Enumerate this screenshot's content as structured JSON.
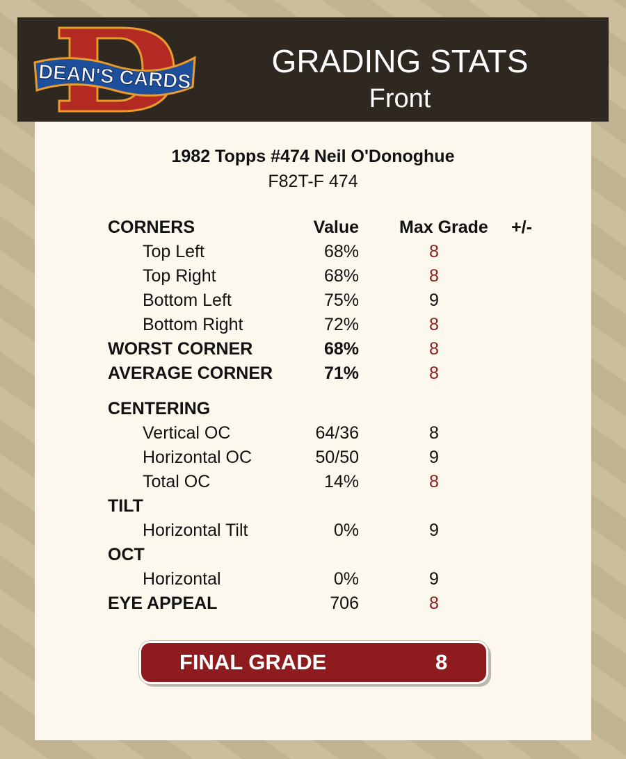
{
  "header": {
    "logo_text": "DEAN'S CARDS",
    "title": "GRADING STATS",
    "subtitle": "Front"
  },
  "card": {
    "title": "1982 Topps #474 Neil O'Donoghue",
    "code": "F82T-F 474"
  },
  "colors": {
    "highlight": "#8e1b1d",
    "header_bg": "#2e2820",
    "panel_bg": "#fcf8ee"
  },
  "table": {
    "columns": {
      "value": "Value",
      "max_grade": "Max Grade",
      "plus_minus": "+/-"
    },
    "rows": [
      {
        "label": "CORNERS",
        "type": "header"
      },
      {
        "label": "Top Left",
        "value": "68%",
        "max_grade": "8",
        "highlight": true,
        "type": "sub"
      },
      {
        "label": "Top Right",
        "value": "68%",
        "max_grade": "8",
        "highlight": true,
        "type": "sub"
      },
      {
        "label": "Bottom Left",
        "value": "75%",
        "max_grade": "9",
        "highlight": false,
        "type": "sub"
      },
      {
        "label": "Bottom Right",
        "value": "72%",
        "max_grade": "8",
        "highlight": true,
        "type": "sub"
      },
      {
        "label": "WORST CORNER",
        "value": "68%",
        "max_grade": "8",
        "highlight": true,
        "type": "bold"
      },
      {
        "label": "AVERAGE CORNER",
        "value": "71%",
        "max_grade": "8",
        "highlight": true,
        "type": "bold"
      },
      {
        "label": "CENTERING",
        "type": "section"
      },
      {
        "label": "Vertical OC",
        "value": "64/36",
        "max_grade": "8",
        "highlight": false,
        "type": "sub"
      },
      {
        "label": "Horizontal OC",
        "value": "50/50",
        "max_grade": "9",
        "highlight": false,
        "type": "sub"
      },
      {
        "label": "Total OC",
        "value": "14%",
        "max_grade": "8",
        "highlight": true,
        "type": "sub"
      },
      {
        "label": "TILT",
        "type": "section"
      },
      {
        "label": "Horizontal Tilt",
        "value": "0%",
        "max_grade": "9",
        "highlight": false,
        "type": "sub"
      },
      {
        "label": "OCT",
        "type": "section"
      },
      {
        "label": "Horizontal",
        "value": "0%",
        "max_grade": "9",
        "highlight": false,
        "type": "sub"
      },
      {
        "label": "EYE APPEAL",
        "value": "706",
        "max_grade": "8",
        "highlight": true,
        "type": "section-value"
      }
    ]
  },
  "final_grade": {
    "label": "FINAL GRADE",
    "value": "8"
  }
}
